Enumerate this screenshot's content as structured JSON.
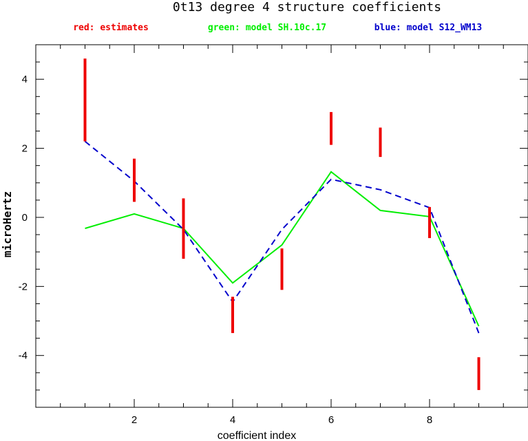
{
  "chart_data": {
    "type": "line",
    "title": "0t13 degree 4 structure coefficients",
    "xlabel": "coefficient index",
    "ylabel": "microHertz",
    "xlim": [
      0,
      10
    ],
    "ylim": [
      -5.5,
      5
    ],
    "x_ticks": [
      2,
      4,
      6,
      8
    ],
    "y_ticks": [
      -4,
      -2,
      0,
      2,
      4
    ],
    "legend": [
      {
        "label": "red: estimates",
        "color": "#ee0000"
      },
      {
        "label": "green: model SH.10c.17",
        "color": "#00ee00"
      },
      {
        "label": "blue: model S12_WM13",
        "color": "#0000cc"
      }
    ],
    "estimates": {
      "color": "#ee0000",
      "ranges": [
        {
          "x": 1,
          "low": 2.2,
          "high": 4.6
        },
        {
          "x": 2,
          "low": 0.45,
          "high": 1.7
        },
        {
          "x": 3,
          "low": -1.2,
          "high": 0.55
        },
        {
          "x": 4,
          "low": -3.35,
          "high": -2.3
        },
        {
          "x": 5,
          "low": -2.1,
          "high": -0.9
        },
        {
          "x": 6,
          "low": 2.1,
          "high": 3.05
        },
        {
          "x": 7,
          "low": 1.75,
          "high": 2.6
        },
        {
          "x": 8,
          "low": -0.6,
          "high": 0.3
        },
        {
          "x": 9,
          "low": -5.0,
          "high": -4.05
        }
      ]
    },
    "series": [
      {
        "name": "model SH.10c.17",
        "color": "#00ee00",
        "dash": false,
        "x": [
          1,
          2,
          3,
          4,
          5,
          6,
          7,
          8,
          9
        ],
        "values": [
          -0.32,
          0.1,
          -0.32,
          -1.9,
          -0.8,
          1.32,
          0.2,
          0.02,
          -3.15
        ]
      },
      {
        "name": "model S12_WM13",
        "color": "#0000cc",
        "dash": true,
        "x": [
          1,
          2,
          3,
          4,
          5,
          6,
          7,
          8,
          9
        ],
        "values": [
          2.2,
          1.05,
          -0.35,
          -2.45,
          -0.35,
          1.1,
          0.8,
          0.28,
          -3.35
        ]
      }
    ]
  }
}
